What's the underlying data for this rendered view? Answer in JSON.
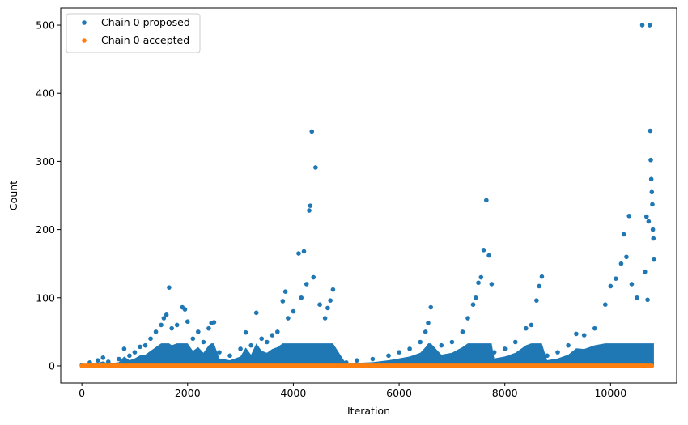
{
  "chart_data": {
    "type": "scatter",
    "title": "",
    "xlabel": "Iteration",
    "ylabel": "Count",
    "xlim": [
      -400,
      11250
    ],
    "ylim": [
      -25,
      525
    ],
    "xticks": [
      0,
      2000,
      4000,
      6000,
      8000,
      10000
    ],
    "yticks": [
      0,
      100,
      200,
      300,
      400,
      500
    ],
    "x_tick_labels": [
      "0",
      "2000",
      "4000",
      "6000",
      "8000",
      "10000"
    ],
    "y_tick_labels": [
      "0",
      "100",
      "200",
      "300",
      "400",
      "500"
    ],
    "grid": false,
    "legend_position": "top-left",
    "series": [
      {
        "name": "Chain 0 proposed",
        "color": "#1f77b4",
        "marker": "dot",
        "points": [
          [
            0,
            1
          ],
          [
            150,
            5
          ],
          [
            300,
            8
          ],
          [
            400,
            12
          ],
          [
            500,
            6
          ],
          [
            700,
            10
          ],
          [
            800,
            25
          ],
          [
            900,
            15
          ],
          [
            1000,
            20
          ],
          [
            1100,
            28
          ],
          [
            1200,
            30
          ],
          [
            1300,
            40
          ],
          [
            1400,
            50
          ],
          [
            1500,
            60
          ],
          [
            1550,
            70
          ],
          [
            1600,
            75
          ],
          [
            1650,
            115
          ],
          [
            1700,
            55
          ],
          [
            1800,
            60
          ],
          [
            1900,
            86
          ],
          [
            1950,
            83
          ],
          [
            2000,
            65
          ],
          [
            2100,
            40
          ],
          [
            2200,
            50
          ],
          [
            2300,
            35
          ],
          [
            2400,
            55
          ],
          [
            2450,
            63
          ],
          [
            2500,
            64
          ],
          [
            2600,
            20
          ],
          [
            2800,
            15
          ],
          [
            3000,
            25
          ],
          [
            3100,
            49
          ],
          [
            3200,
            30
          ],
          [
            3300,
            78
          ],
          [
            3400,
            40
          ],
          [
            3500,
            35
          ],
          [
            3600,
            45
          ],
          [
            3700,
            50
          ],
          [
            3800,
            95
          ],
          [
            3850,
            109
          ],
          [
            3900,
            70
          ],
          [
            4000,
            80
          ],
          [
            4100,
            165
          ],
          [
            4150,
            100
          ],
          [
            4200,
            168
          ],
          [
            4250,
            120
          ],
          [
            4300,
            228
          ],
          [
            4320,
            235
          ],
          [
            4350,
            344
          ],
          [
            4380,
            130
          ],
          [
            4420,
            291
          ],
          [
            4500,
            90
          ],
          [
            4600,
            70
          ],
          [
            4650,
            85
          ],
          [
            4700,
            96
          ],
          [
            4750,
            112
          ],
          [
            5000,
            5
          ],
          [
            5200,
            8
          ],
          [
            5500,
            10
          ],
          [
            5800,
            15
          ],
          [
            6000,
            20
          ],
          [
            6200,
            25
          ],
          [
            6400,
            35
          ],
          [
            6500,
            50
          ],
          [
            6550,
            63
          ],
          [
            6600,
            86
          ],
          [
            6800,
            30
          ],
          [
            7000,
            35
          ],
          [
            7200,
            50
          ],
          [
            7300,
            70
          ],
          [
            7400,
            90
          ],
          [
            7450,
            100
          ],
          [
            7500,
            122
          ],
          [
            7550,
            130
          ],
          [
            7600,
            170
          ],
          [
            7650,
            243
          ],
          [
            7700,
            162
          ],
          [
            7750,
            120
          ],
          [
            7800,
            20
          ],
          [
            8000,
            25
          ],
          [
            8200,
            35
          ],
          [
            8400,
            55
          ],
          [
            8500,
            60
          ],
          [
            8600,
            96
          ],
          [
            8650,
            117
          ],
          [
            8700,
            131
          ],
          [
            8800,
            15
          ],
          [
            9000,
            20
          ],
          [
            9200,
            30
          ],
          [
            9350,
            47
          ],
          [
            9500,
            45
          ],
          [
            9700,
            55
          ],
          [
            9900,
            90
          ],
          [
            10000,
            117
          ],
          [
            10100,
            128
          ],
          [
            10200,
            150
          ],
          [
            10250,
            193
          ],
          [
            10300,
            160
          ],
          [
            10350,
            220
          ],
          [
            10400,
            120
          ],
          [
            10500,
            100
          ],
          [
            10600,
            500
          ],
          [
            10650,
            138
          ],
          [
            10680,
            219
          ],
          [
            10700,
            97
          ],
          [
            10720,
            212
          ],
          [
            10740,
            500
          ],
          [
            10750,
            345
          ],
          [
            10760,
            302
          ],
          [
            10770,
            274
          ],
          [
            10780,
            255
          ],
          [
            10790,
            237
          ],
          [
            10800,
            200
          ],
          [
            10810,
            187
          ],
          [
            10820,
            156
          ]
        ]
      },
      {
        "name": "Chain 0 accepted",
        "color": "#ff7f0e",
        "marker": "dot",
        "points": [
          [
            0,
            0
          ],
          [
            10780,
            0
          ]
        ]
      }
    ]
  }
}
